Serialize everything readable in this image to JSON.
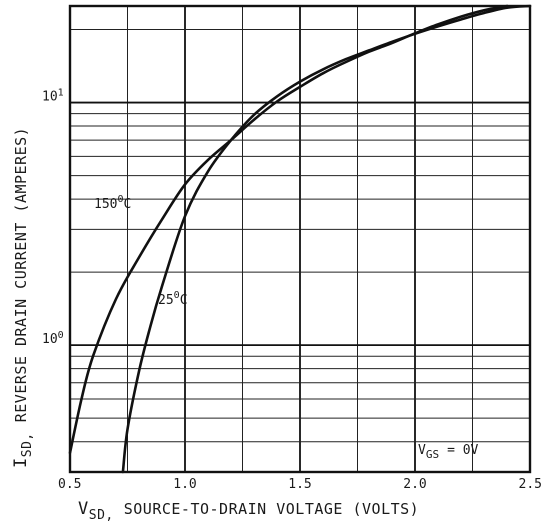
{
  "chart_data": {
    "type": "line",
    "title": "",
    "xlabel_prefix": "V",
    "xlabel_sub": "SD,",
    "xlabel_text": "SOURCE-TO-DRAIN VOLTAGE (VOLTS)",
    "ylabel_prefix": "I",
    "ylabel_sub": "SD,",
    "ylabel_text": "REVERSE DRAIN CURRENT (AMPERES)",
    "xlim": [
      0.5,
      2.5
    ],
    "ylim": [
      0.3,
      25
    ],
    "yscale": "log",
    "grid": true,
    "x_ticks": [
      {
        "value": 0.5,
        "label": "0.5"
      },
      {
        "value": 1.0,
        "label": "1.0"
      },
      {
        "value": 1.5,
        "label": "1.5"
      },
      {
        "value": 2.0,
        "label": "2.0"
      },
      {
        "value": 2.5,
        "label": "2.5"
      }
    ],
    "y_ticks": [
      {
        "value": 1,
        "base": "10",
        "exp": "0"
      },
      {
        "value": 10,
        "base": "10",
        "exp": "1"
      }
    ],
    "series": [
      {
        "name": "150°C",
        "label_base": "150",
        "label_sup": "0",
        "label_unit": "C",
        "x": [
          0.5,
          0.55,
          0.6,
          0.7,
          0.8,
          0.9,
          1.0,
          1.1,
          1.2,
          1.3,
          1.4,
          1.5,
          1.6,
          1.7,
          1.8,
          1.9,
          2.0,
          2.1,
          2.2,
          2.3,
          2.4
        ],
        "y": [
          0.36,
          0.6,
          0.9,
          1.55,
          2.3,
          3.3,
          4.6,
          5.8,
          7.0,
          8.5,
          10.1,
          11.6,
          13.2,
          14.7,
          16.2,
          17.6,
          19.3,
          21.0,
          22.6,
          24.0,
          25.0
        ]
      },
      {
        "name": "25°C",
        "label_base": "25",
        "label_sup": "0",
        "label_unit": "C",
        "x": [
          0.73,
          0.75,
          0.8,
          0.85,
          0.9,
          1.0,
          1.1,
          1.2,
          1.3,
          1.4,
          1.5,
          1.6,
          1.7,
          1.8,
          1.9,
          2.0,
          2.1,
          2.2,
          2.3,
          2.4,
          2.5
        ],
        "y": [
          0.3,
          0.45,
          0.78,
          1.2,
          1.75,
          3.4,
          5.2,
          7.0,
          8.9,
          10.6,
          12.2,
          13.7,
          15.1,
          16.4,
          17.8,
          19.2,
          20.6,
          22.0,
          23.4,
          24.6,
          25.0
        ]
      }
    ],
    "annotation": {
      "prefix": "V",
      "sub": "GS",
      "text": "= 0V"
    }
  }
}
